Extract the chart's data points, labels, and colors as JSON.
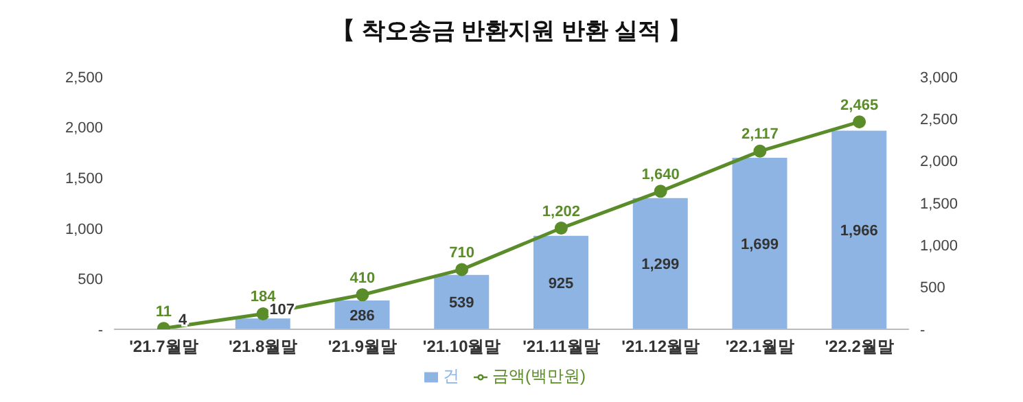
{
  "chart_data": {
    "type": "bar",
    "title": "【 착오송금 반환지원 반환 실적 】",
    "categories": [
      "'21.7월말",
      "'21.8월말",
      "'21.9월말",
      "'21.10월말",
      "'21.11월말",
      "'21.12월말",
      "'22.1월말",
      "'22.2월말"
    ],
    "series": [
      {
        "name": "건",
        "color": "#8eb4e3",
        "values": [
          4,
          107,
          286,
          539,
          925,
          1299,
          1699,
          1966
        ],
        "value_labels": [
          "4",
          "107",
          "286",
          "539",
          "925",
          "1,299",
          "1,699",
          "1,966"
        ]
      },
      {
        "name": "금액(백만원)",
        "type": "line",
        "axis": "y2",
        "color": "#5b8c2a",
        "values": [
          11,
          184,
          410,
          710,
          1202,
          1640,
          2117,
          2465
        ],
        "value_labels": [
          "11",
          "184",
          "410",
          "710",
          "1,202",
          "1,640",
          "2,117",
          "2,465"
        ]
      }
    ],
    "ylim": [
      0,
      2500
    ],
    "yticks": [
      {
        "value": 0,
        "label": "-"
      },
      500,
      {
        "value": 1000,
        "label": "1,000"
      },
      {
        "value": 1500,
        "label": "1,500"
      },
      {
        "value": 2000,
        "label": "2,000"
      },
      {
        "value": 2500,
        "label": "2,500"
      }
    ],
    "y2lim": [
      0,
      3000
    ],
    "y2ticks": [
      {
        "value": 0,
        "label": "-"
      },
      500,
      {
        "value": 1000,
        "label": "1,000"
      },
      {
        "value": 1500,
        "label": "1,500"
      },
      {
        "value": 2000,
        "label": "2,000"
      },
      {
        "value": 2500,
        "label": "2,500"
      },
      {
        "value": 3000,
        "label": "3,000"
      }
    ],
    "legend": "bottom",
    "marker": "circle",
    "grid": false
  }
}
